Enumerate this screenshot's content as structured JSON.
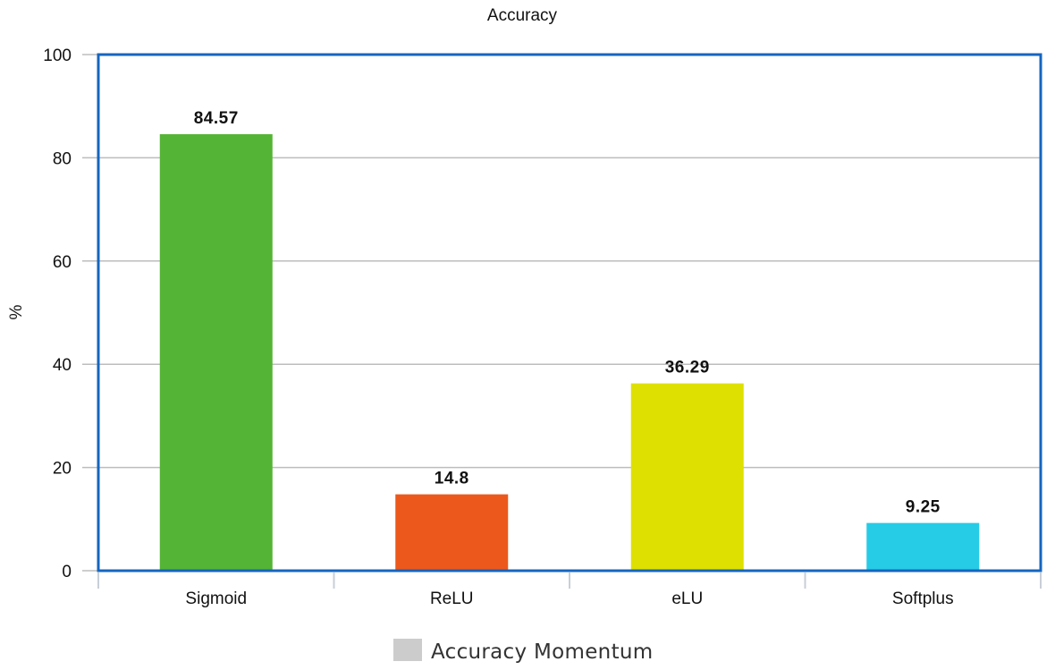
{
  "chart_data": {
    "type": "bar",
    "title": "Accuracy",
    "ylabel": "%",
    "xlabel": "",
    "categories": [
      "Sigmoid",
      "ReLU",
      "eLU",
      "Softplus"
    ],
    "series": [
      {
        "name": "Accuracy Momentum",
        "values": [
          84.57,
          14.8,
          36.29,
          9.25
        ],
        "labels": [
          "84.57",
          "14.8",
          "36.29",
          "9.25"
        ],
        "colors": [
          "#54b435",
          "#ec581c",
          "#dde000",
          "#26cbe6"
        ]
      }
    ],
    "ylim": [
      0,
      100
    ],
    "yticks": [
      0,
      20,
      40,
      60,
      80,
      100
    ],
    "grid": true,
    "legend_position": "bottom-center",
    "legend_swatch_color": "#cccccc",
    "plot_border_color": "#1565c0",
    "gridline_color": "#bdbdbd"
  }
}
